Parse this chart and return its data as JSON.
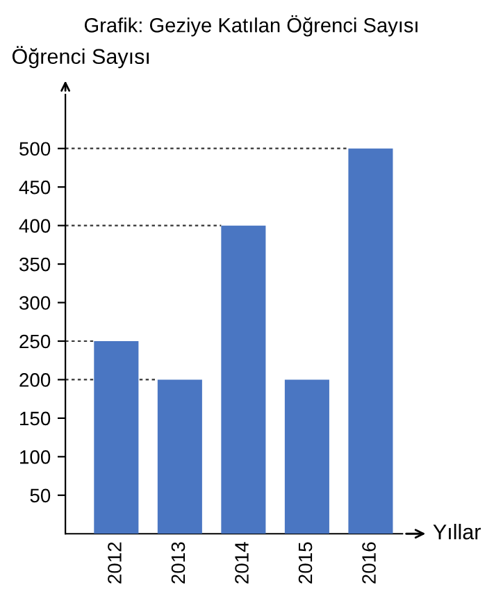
{
  "chart_data": {
    "type": "bar",
    "title": "Grafik: Geziye Katılan Öğrenci Sayısı",
    "xlabel": "Yıllar",
    "ylabel": "Öğrenci Sayısı",
    "categories": [
      "2012",
      "2013",
      "2014",
      "2015",
      "2016"
    ],
    "values": [
      250,
      200,
      400,
      200,
      500
    ],
    "color": "#4a76c2",
    "ylim": [
      0,
      570
    ],
    "yticks": [
      50,
      100,
      150,
      200,
      250,
      300,
      350,
      400,
      450,
      500
    ],
    "ref_lines": [
      {
        "axis": "y",
        "value": 250,
        "line_style": "dotted",
        "color": "#333333"
      },
      {
        "axis": "y",
        "value": 200,
        "line_style": "dotted",
        "color": "#333333"
      },
      {
        "axis": "y",
        "value": 400,
        "line_style": "dotted",
        "color": "#333333"
      },
      {
        "axis": "y",
        "value": 500,
        "line_style": "dotted",
        "color": "#333333"
      }
    ],
    "grid": false,
    "legend": false
  }
}
